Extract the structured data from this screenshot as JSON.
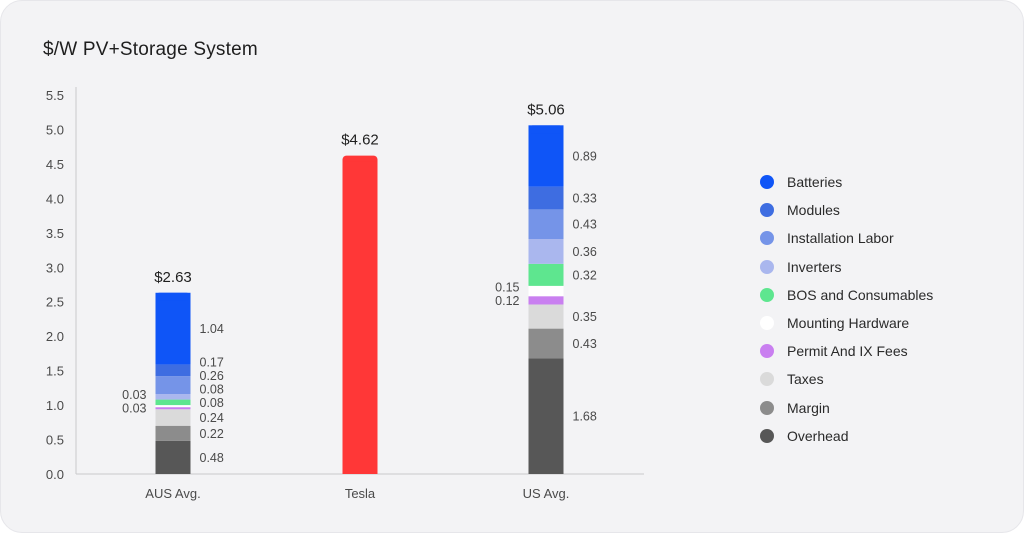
{
  "chart_data": {
    "type": "bar",
    "title": "$/W PV+Storage System",
    "xlabel": "",
    "ylabel": "",
    "ylim": [
      0,
      5.5
    ],
    "yticks": [
      "0.0",
      "0.5",
      "1.0",
      "1.5",
      "2.0",
      "2.5",
      "3.0",
      "3.5",
      "4.0",
      "4.5",
      "5.0",
      "5.5"
    ],
    "grid": false,
    "legend_position": "right",
    "categories": [
      "AUS Avg.",
      "Tesla",
      "US Avg."
    ],
    "totals": [
      2.63,
      4.62,
      5.06
    ],
    "total_labels": [
      "$2.63",
      "$4.62",
      "$5.06"
    ],
    "series": [
      {
        "name": "Overhead",
        "color": "#575757",
        "values": [
          0.48,
          null,
          1.68
        ],
        "labels": [
          "0.48",
          "",
          "1.68"
        ]
      },
      {
        "name": "Margin",
        "color": "#8c8c8c",
        "values": [
          0.22,
          null,
          0.43
        ],
        "labels": [
          "0.22",
          "",
          "0.43"
        ]
      },
      {
        "name": "Taxes",
        "color": "#dadada",
        "values": [
          0.24,
          null,
          0.35
        ],
        "labels": [
          "0.24",
          "",
          "0.35"
        ]
      },
      {
        "name": "Permit And IX Fees",
        "color": "#c97ff0",
        "values": [
          0.03,
          null,
          0.12
        ],
        "labels": [
          "0.03",
          "",
          "0.12"
        ]
      },
      {
        "name": "Mounting Hardware",
        "color": "#ffffff",
        "values": [
          0.03,
          null,
          0.15
        ],
        "labels": [
          "0.03",
          "",
          "0.15"
        ]
      },
      {
        "name": "BOS and Consumables",
        "color": "#5ee68f",
        "values": [
          0.08,
          null,
          0.32
        ],
        "labels": [
          "0.08",
          "",
          "0.32"
        ]
      },
      {
        "name": "Inverters",
        "color": "#aab7ee",
        "values": [
          0.08,
          null,
          0.36
        ],
        "labels": [
          "0.08",
          "",
          "0.36"
        ]
      },
      {
        "name": "Installation Labor",
        "color": "#7594e8",
        "values": [
          0.26,
          null,
          0.43
        ],
        "labels": [
          "0.26",
          "",
          "0.43"
        ]
      },
      {
        "name": "Modules",
        "color": "#3e6de1",
        "values": [
          0.17,
          null,
          0.33
        ],
        "labels": [
          "0.17",
          "",
          "0.33"
        ]
      },
      {
        "name": "Batteries",
        "color": "#0f55f7",
        "values": [
          1.04,
          null,
          0.89
        ],
        "labels": [
          "1.04",
          "",
          "0.89"
        ]
      }
    ],
    "solid_bars": [
      {
        "category": "Tesla",
        "value": 4.62,
        "color": "#ff3737"
      }
    ]
  },
  "legend": {
    "items": [
      {
        "label": "Batteries",
        "color": "#0f55f7"
      },
      {
        "label": "Modules",
        "color": "#3e6de1"
      },
      {
        "label": "Installation Labor",
        "color": "#7594e8"
      },
      {
        "label": "Inverters",
        "color": "#aab7ee"
      },
      {
        "label": "BOS and Consumables",
        "color": "#5ee68f"
      },
      {
        "label": "Mounting Hardware",
        "color": "#ffffff"
      },
      {
        "label": "Permit And IX Fees",
        "color": "#c97ff0"
      },
      {
        "label": "Taxes",
        "color": "#dadada"
      },
      {
        "label": "Margin",
        "color": "#8c8c8c"
      },
      {
        "label": "Overhead",
        "color": "#575757"
      }
    ]
  }
}
